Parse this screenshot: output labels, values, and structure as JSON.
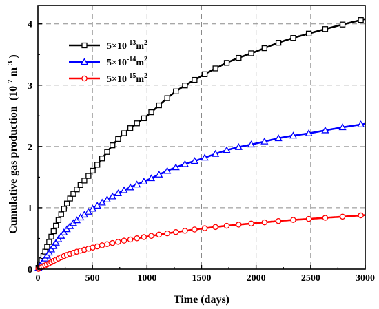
{
  "chart_data": {
    "type": "line",
    "xlabel": "Time (days)",
    "ylabel": "Cumulative gas production",
    "ylabel_unit": {
      "open": "(10",
      "exp": "7",
      "mid": " m",
      "exp2": "3",
      "close": ")"
    },
    "xlim": [
      0,
      3000
    ],
    "ylim": [
      0,
      4.3
    ],
    "x_ticks": [
      0,
      500,
      1000,
      1500,
      2000,
      2500,
      3000
    ],
    "y_ticks": [
      0,
      1,
      2,
      3,
      4
    ],
    "grid": true,
    "legend_position": "top-left",
    "series": [
      {
        "name": {
          "base": "5×10",
          "exp": "-13",
          "unit": "m",
          "unit_exp": "2"
        },
        "color": "#000000",
        "marker": "square",
        "x": [
          0,
          250,
          500,
          750,
          1000,
          1250,
          1500,
          1750,
          2000,
          2250,
          2500,
          2750,
          3000
        ],
        "y": [
          0,
          1.02,
          1.6,
          2.15,
          2.5,
          2.88,
          3.15,
          3.38,
          3.55,
          3.72,
          3.85,
          3.97,
          4.08
        ]
      },
      {
        "name": {
          "base": "5×10",
          "exp": "-14",
          "unit": "m",
          "unit_exp": "2"
        },
        "color": "#0000ff",
        "marker": "triangle",
        "x": [
          0,
          250,
          500,
          750,
          1000,
          1250,
          1500,
          1750,
          2000,
          2250,
          2500,
          2750,
          3000
        ],
        "y": [
          0,
          0.62,
          0.98,
          1.25,
          1.45,
          1.65,
          1.8,
          1.95,
          2.05,
          2.15,
          2.22,
          2.3,
          2.37
        ]
      },
      {
        "name": {
          "base": "5×10",
          "exp": "-15",
          "unit": "m",
          "unit_exp": "2"
        },
        "color": "#ff0000",
        "marker": "circle",
        "x": [
          0,
          250,
          500,
          750,
          1000,
          1250,
          1500,
          1750,
          2000,
          2250,
          2500,
          2750,
          3000
        ],
        "y": [
          0,
          0.22,
          0.35,
          0.45,
          0.53,
          0.6,
          0.66,
          0.71,
          0.75,
          0.79,
          0.82,
          0.85,
          0.88
        ]
      }
    ]
  }
}
